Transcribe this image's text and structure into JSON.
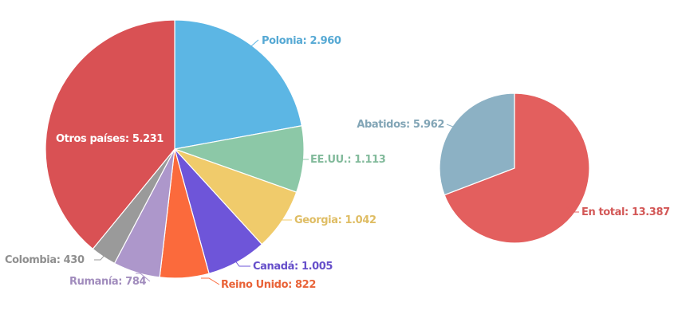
{
  "chart_data": [
    {
      "type": "pie",
      "slices": [
        {
          "name": "Polonia",
          "value": 2960,
          "label": "Polonia: 2.960",
          "color": "#5cb6e4"
        },
        {
          "name": "EE.UU.",
          "value": 1113,
          "label": "EE.UU.: 1.113",
          "color": "#8cc8a7"
        },
        {
          "name": "Georgia",
          "value": 1042,
          "label": "Georgia: 1.042",
          "color": "#f0cb6b"
        },
        {
          "name": "Canadá",
          "value": 1005,
          "label": "Canadá: 1.005",
          "color": "#6e55d9"
        },
        {
          "name": "Reino Unido",
          "value": 822,
          "label": "Reino Unido: 822",
          "color": "#fb6a3c"
        },
        {
          "name": "Rumanía",
          "value": 784,
          "label": "Rumanía: 784",
          "color": "#ad97cb"
        },
        {
          "name": "Colombia",
          "value": 430,
          "label": "Colombia: 430",
          "color": "#9a9a9a"
        },
        {
          "name": "Otros países",
          "value": 5231,
          "label": "Otros países: 5.231",
          "color": "#d95154"
        }
      ]
    },
    {
      "type": "pie",
      "slices": [
        {
          "name": "En total",
          "value": 13387,
          "label": "En total: 13.387",
          "color": "#e35f5e"
        },
        {
          "name": "Abatidos",
          "value": 5962,
          "label": "Abatidos: 5.962",
          "color": "#8cb1c4"
        }
      ]
    }
  ]
}
